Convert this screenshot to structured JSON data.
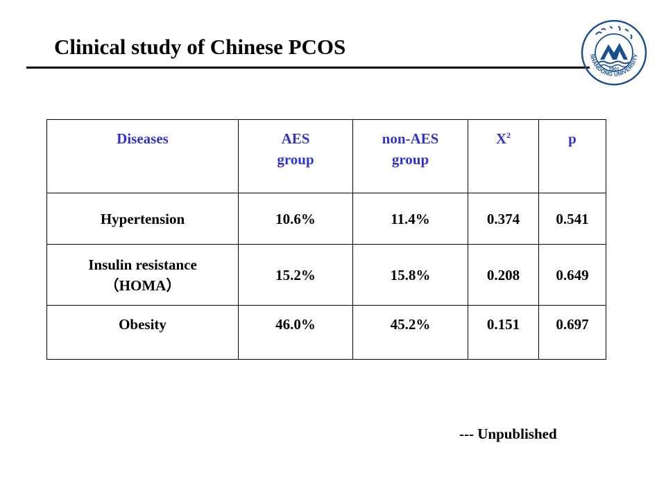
{
  "slide": {
    "title": "Clinical study of Chinese PCOS",
    "note": "--- Unpublished"
  },
  "logo": {
    "icon": "shandong-university-seal",
    "text": "SHANDONG UNIVERSITY",
    "year": "1901",
    "color": "#1a4f8f"
  },
  "table": {
    "header_color": "#3333cc",
    "headers": [
      {
        "lines": [
          "Diseases"
        ]
      },
      {
        "lines": [
          "AES",
          "group"
        ]
      },
      {
        "lines": [
          "non-AES",
          "group"
        ]
      },
      {
        "base": "X",
        "sup": "2"
      },
      {
        "lines": [
          "p"
        ]
      }
    ],
    "rows": [
      {
        "disease": [
          "Hypertension"
        ],
        "aes": "10.6%",
        "non_aes": "11.4%",
        "x2": "0.374",
        "p": "0.541"
      },
      {
        "disease": [
          "Insulin resistance",
          "（HOMA）"
        ],
        "aes": "15.2%",
        "non_aes": "15.8%",
        "x2": "0.208",
        "p": "0.649"
      },
      {
        "disease": [
          "Obesity"
        ],
        "aes": "46.0%",
        "non_aes": "45.2%",
        "x2": "0.151",
        "p": "0.697"
      }
    ]
  }
}
